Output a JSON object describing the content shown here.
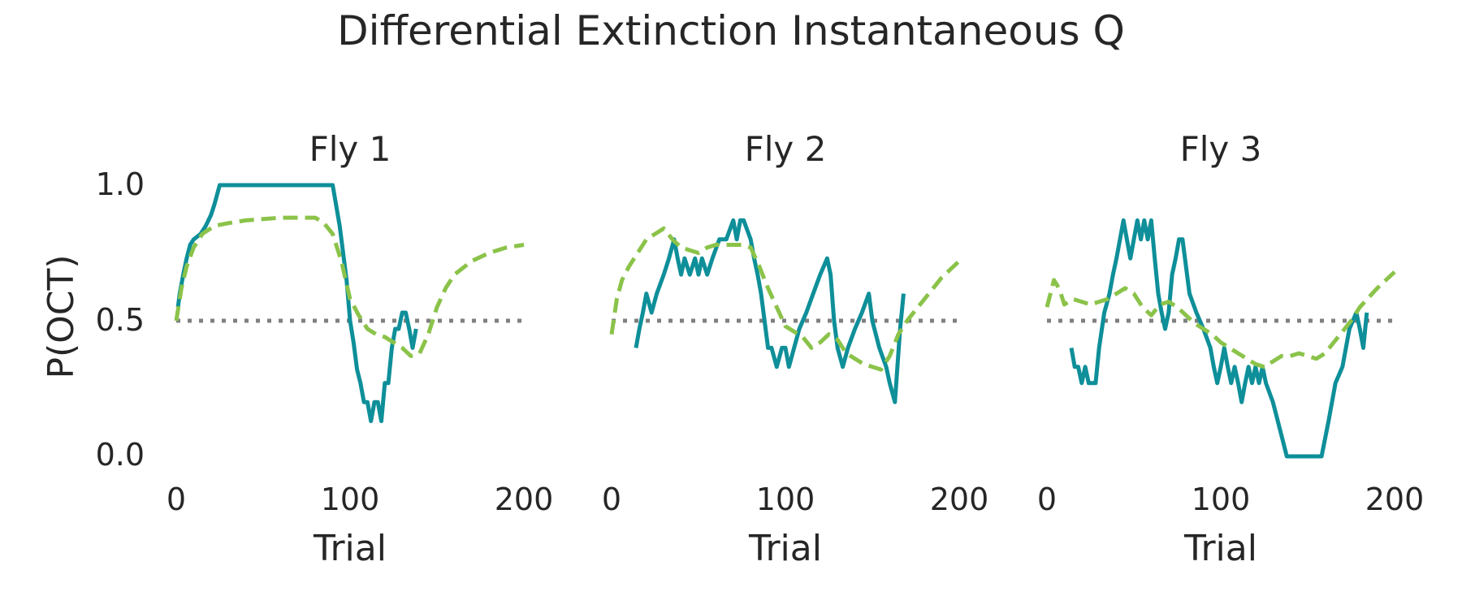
{
  "chart_data": {
    "title": "Differential Extinction Instantaneous Q",
    "ylabel": "P(OCT)",
    "xlabel": "Trial",
    "ylim": [
      0,
      1
    ],
    "xlim": [
      0,
      200
    ],
    "xticks": [
      "0",
      "100",
      "200"
    ],
    "yticks": [
      "0.0",
      "0.5",
      "1.0"
    ],
    "grid": false,
    "colors": {
      "observed": "#0E8F99",
      "model": "#8BC34A",
      "chance": "#808080"
    },
    "panels": [
      {
        "title": "Fly 1",
        "type": "line",
        "series": [
          {
            "style": "solid",
            "x": [
              1,
              2,
              4,
              6,
              8,
              10,
              14,
              17,
              20,
              22,
              25,
              90,
              94,
              98,
              100,
              102,
              104,
              106,
              108,
              110,
              112,
              114,
              116,
              118,
              120,
              122,
              124,
              126,
              128,
              130,
              132,
              134,
              136,
              138
            ],
            "y": [
              0.55,
              0.6,
              0.67,
              0.73,
              0.78,
              0.8,
              0.82,
              0.85,
              0.89,
              0.93,
              1.0,
              1.0,
              0.85,
              0.65,
              0.5,
              0.42,
              0.32,
              0.27,
              0.2,
              0.2,
              0.13,
              0.2,
              0.2,
              0.13,
              0.27,
              0.27,
              0.4,
              0.47,
              0.47,
              0.53,
              0.53,
              0.47,
              0.4,
              0.47
            ]
          },
          {
            "style": "dashed",
            "x": [
              0,
              3,
              6,
              10,
              15,
              22,
              30,
              40,
              50,
              60,
              70,
              75,
              80,
              85,
              90,
              95,
              100,
              105,
              110,
              115,
              120,
              125,
              130,
              135,
              140,
              145,
              150,
              155,
              160,
              170,
              180,
              190,
              200
            ],
            "y": [
              0.5,
              0.62,
              0.7,
              0.77,
              0.82,
              0.85,
              0.86,
              0.87,
              0.875,
              0.88,
              0.88,
              0.88,
              0.88,
              0.86,
              0.82,
              0.72,
              0.58,
              0.52,
              0.47,
              0.45,
              0.44,
              0.42,
              0.4,
              0.37,
              0.38,
              0.45,
              0.55,
              0.62,
              0.67,
              0.72,
              0.75,
              0.77,
              0.78
            ]
          },
          {
            "style": "dotted",
            "x": [
              0,
              200
            ],
            "y": [
              0.5,
              0.5
            ]
          }
        ]
      },
      {
        "title": "Fly 2",
        "type": "line",
        "series": [
          {
            "style": "solid",
            "x": [
              14,
              16,
              18,
              20,
              23,
              26,
              30,
              33,
              36,
              38,
              40,
              42,
              45,
              48,
              50,
              52,
              55,
              58,
              62,
              66,
              70,
              72,
              74,
              76,
              80,
              82,
              84,
              86,
              88,
              90,
              92,
              95,
              98,
              100,
              102,
              105,
              108,
              112,
              116,
              120,
              124,
              126,
              128,
              130,
              133,
              136,
              140,
              144,
              148,
              150,
              154,
              158,
              160,
              163,
              166,
              168
            ],
            "y": [
              0.4,
              0.47,
              0.53,
              0.6,
              0.53,
              0.6,
              0.67,
              0.73,
              0.8,
              0.73,
              0.67,
              0.73,
              0.67,
              0.73,
              0.67,
              0.73,
              0.67,
              0.73,
              0.8,
              0.8,
              0.87,
              0.8,
              0.87,
              0.87,
              0.8,
              0.73,
              0.67,
              0.6,
              0.5,
              0.4,
              0.4,
              0.33,
              0.4,
              0.4,
              0.33,
              0.4,
              0.47,
              0.53,
              0.6,
              0.67,
              0.73,
              0.67,
              0.5,
              0.4,
              0.33,
              0.4,
              0.47,
              0.53,
              0.6,
              0.5,
              0.4,
              0.33,
              0.27,
              0.2,
              0.47,
              0.6
            ]
          },
          {
            "style": "dashed",
            "x": [
              0,
              3,
              6,
              10,
              15,
              20,
              25,
              30,
              35,
              40,
              45,
              50,
              55,
              60,
              65,
              70,
              75,
              80,
              85,
              90,
              95,
              100,
              105,
              110,
              115,
              120,
              125,
              130,
              135,
              140,
              145,
              150,
              155,
              160,
              165,
              170,
              180,
              190,
              200
            ],
            "y": [
              0.45,
              0.58,
              0.65,
              0.7,
              0.75,
              0.8,
              0.82,
              0.84,
              0.8,
              0.77,
              0.76,
              0.75,
              0.77,
              0.78,
              0.78,
              0.78,
              0.78,
              0.77,
              0.7,
              0.62,
              0.55,
              0.48,
              0.46,
              0.44,
              0.4,
              0.42,
              0.45,
              0.43,
              0.38,
              0.36,
              0.34,
              0.33,
              0.32,
              0.37,
              0.45,
              0.5,
              0.58,
              0.66,
              0.72
            ]
          },
          {
            "style": "dotted",
            "x": [
              0,
              200
            ],
            "y": [
              0.5,
              0.5
            ]
          }
        ]
      },
      {
        "title": "Fly 3",
        "type": "line",
        "series": [
          {
            "style": "solid",
            "x": [
              14,
              16,
              18,
              20,
              22,
              24,
              28,
              30,
              33,
              36,
              38,
              40,
              42,
              44,
              46,
              48,
              50,
              52,
              54,
              56,
              58,
              60,
              62,
              64,
              66,
              68,
              70,
              72,
              74,
              76,
              78,
              82,
              86,
              90,
              94,
              96,
              98,
              100,
              102,
              104,
              106,
              108,
              110,
              112,
              114,
              116,
              118,
              120,
              122,
              124,
              126,
              130,
              134,
              138,
              142,
              146,
              150,
              158,
              162,
              166,
              170,
              174,
              178,
              180,
              182,
              184
            ],
            "y": [
              0.4,
              0.33,
              0.33,
              0.27,
              0.33,
              0.27,
              0.27,
              0.4,
              0.53,
              0.6,
              0.67,
              0.73,
              0.8,
              0.87,
              0.8,
              0.73,
              0.8,
              0.87,
              0.8,
              0.87,
              0.8,
              0.87,
              0.73,
              0.6,
              0.53,
              0.47,
              0.53,
              0.67,
              0.73,
              0.8,
              0.8,
              0.6,
              0.53,
              0.47,
              0.4,
              0.33,
              0.27,
              0.33,
              0.4,
              0.33,
              0.27,
              0.33,
              0.27,
              0.2,
              0.27,
              0.33,
              0.27,
              0.33,
              0.27,
              0.33,
              0.27,
              0.2,
              0.1,
              0.0,
              0.0,
              0.0,
              0.0,
              0.0,
              0.13,
              0.27,
              0.33,
              0.47,
              0.53,
              0.47,
              0.4,
              0.53
            ]
          },
          {
            "style": "dashed",
            "x": [
              0,
              2,
              4,
              6,
              8,
              10,
              15,
              20,
              25,
              30,
              35,
              40,
              45,
              50,
              55,
              60,
              65,
              70,
              75,
              80,
              85,
              90,
              95,
              100,
              105,
              110,
              115,
              120,
              125,
              130,
              135,
              140,
              145,
              150,
              155,
              160,
              165,
              170,
              175,
              180,
              190,
              200
            ],
            "y": [
              0.55,
              0.6,
              0.65,
              0.63,
              0.6,
              0.56,
              0.58,
              0.57,
              0.56,
              0.57,
              0.58,
              0.6,
              0.62,
              0.6,
              0.55,
              0.52,
              0.56,
              0.57,
              0.55,
              0.52,
              0.49,
              0.47,
              0.45,
              0.42,
              0.4,
              0.38,
              0.36,
              0.34,
              0.33,
              0.35,
              0.37,
              0.37,
              0.38,
              0.37,
              0.36,
              0.38,
              0.42,
              0.46,
              0.5,
              0.55,
              0.62,
              0.68
            ]
          },
          {
            "style": "dotted",
            "x": [
              0,
              200
            ],
            "y": [
              0.5,
              0.5
            ]
          }
        ]
      }
    ]
  }
}
